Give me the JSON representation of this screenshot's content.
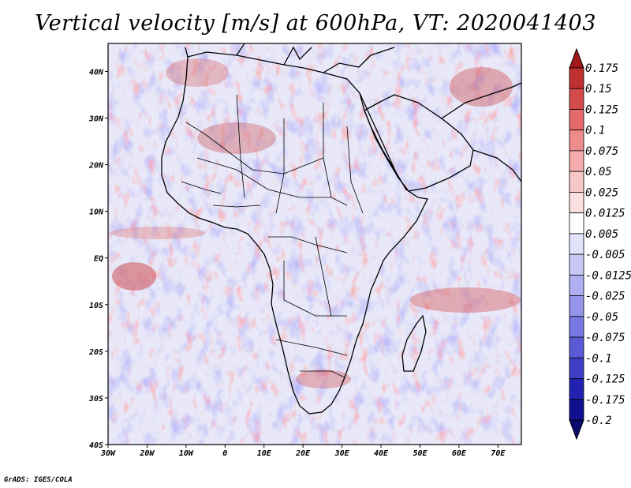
{
  "title": "Vertical velocity [m/s] at 600hPa, VT: 2020041403",
  "credit": "GrADS: IGES/COLA",
  "map": {
    "lon_range": [
      -30,
      76
    ],
    "lat_range": [
      -40,
      46
    ],
    "x_ticks": [
      "30W",
      "20W",
      "10W",
      "0",
      "10E",
      "20E",
      "30E",
      "40E",
      "50E",
      "60E",
      "70E"
    ],
    "x_tick_lons": [
      -30,
      -20,
      -10,
      0,
      10,
      20,
      30,
      40,
      50,
      60,
      70
    ],
    "y_ticks": [
      "40N",
      "30N",
      "20N",
      "10N",
      "EQ",
      "10S",
      "20S",
      "30S",
      "40S"
    ],
    "y_tick_lats": [
      40,
      30,
      20,
      10,
      0,
      -10,
      -20,
      -30,
      -40
    ],
    "field_summary": "Vertical velocity shaded field with coastlines and country borders over Africa, Arabia and surrounding oceans"
  },
  "colorbar": {
    "labels": [
      "0.175",
      "0.15",
      "0.125",
      "0.1",
      "0.075",
      "0.05",
      "0.025",
      "0.0125",
      "0.005",
      "-0.005",
      "-0.0125",
      "-0.025",
      "-0.05",
      "-0.075",
      "-0.1",
      "-0.125",
      "-0.175",
      "-0.2"
    ],
    "colors": [
      "#a01818",
      "#c03030",
      "#d44a4a",
      "#e46a6a",
      "#ee8c8c",
      "#f4acac",
      "#f8c8c8",
      "#fce0e0",
      "#ffffff",
      "#e2e2fa",
      "#c8c8f4",
      "#aeaef0",
      "#9494ea",
      "#7878e2",
      "#5a5ad6",
      "#3e3ec8",
      "#2222b2",
      "#101090",
      "#0a0a70"
    ]
  }
}
